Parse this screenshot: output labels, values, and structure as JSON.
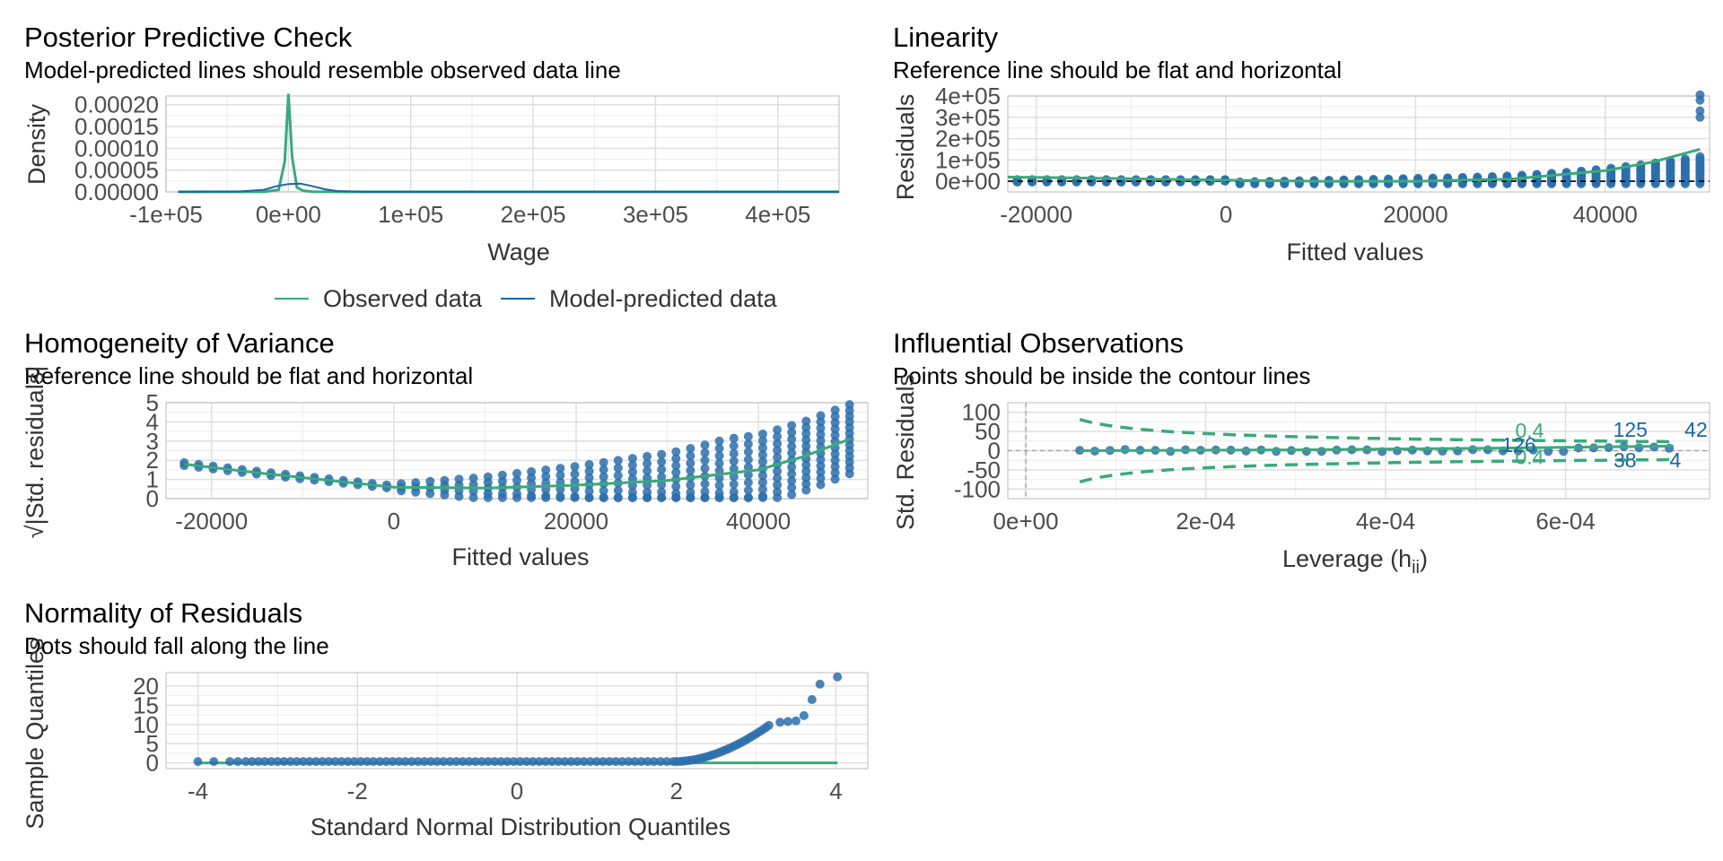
{
  "colors": {
    "observed": "#3aaa7a",
    "predicted": "#1b64a8",
    "points": "#2b6fab",
    "grid": "#dedede",
    "frame": "#bdbdbd",
    "contour": "#3aaa7a",
    "refline": "#000000"
  },
  "chart_data": [
    {
      "type": "line",
      "title": "Posterior Predictive Check",
      "subtitle": "Model-predicted lines should resemble observed data line",
      "xlabel": "Wage",
      "ylabel": "Density",
      "xlim": [
        -100000,
        450000
      ],
      "ylim": [
        0,
        0.00022
      ],
      "xticks": [
        -100000,
        0,
        100000,
        200000,
        300000,
        400000
      ],
      "xtick_labels": [
        "-1e+05",
        "0e+00",
        "1e+05",
        "2e+05",
        "3e+05",
        "4e+05"
      ],
      "yticks": [
        0,
        5e-05,
        0.0001,
        0.00015,
        0.0002
      ],
      "ytick_labels": [
        "0.00000",
        "0.00005",
        "0.00010",
        "0.00015",
        "0.00020"
      ],
      "legend": {
        "position": "bottom",
        "entries": [
          "Observed data",
          "Model-predicted data"
        ]
      },
      "series": [
        {
          "name": "Observed data",
          "x": [
            -90000,
            -20000,
            -8000,
            -3000,
            0,
            3000,
            7000,
            12000,
            20000,
            40000,
            450000
          ],
          "values": [
            2e-07,
            2e-07,
            5e-06,
            7e-05,
            0.000225,
            8e-05,
            1e-05,
            3e-06,
            5e-07,
            2e-07,
            2e-07
          ]
        },
        {
          "name": "Model-predicted data",
          "x": [
            -90000,
            -40000,
            -20000,
            -10000,
            0,
            10000,
            20000,
            30000,
            40000,
            60000,
            450000
          ],
          "values": [
            2e-07,
            1e-06,
            5e-06,
            1.3e-05,
            1.8e-05,
            1.9e-05,
            1.3e-05,
            6e-06,
            2e-06,
            3e-07,
            2e-07
          ]
        }
      ]
    },
    {
      "type": "scatter",
      "title": "Linearity",
      "subtitle": "Reference line should be flat and horizontal",
      "xlabel": "Fitted values",
      "ylabel": "Residuals",
      "xlim": [
        -23000,
        51000
      ],
      "ylim": [
        -50000,
        400000
      ],
      "xticks": [
        -20000,
        0,
        20000,
        40000
      ],
      "xtick_labels": [
        "-20000",
        "0",
        "20000",
        "40000"
      ],
      "yticks": [
        0,
        100000,
        200000,
        300000,
        400000
      ],
      "ytick_labels": [
        "0e+00",
        "1e+05",
        "2e+05",
        "3e+05",
        "4e+05"
      ],
      "reference_line": 0,
      "smooth": {
        "x": [
          -23000,
          -10000,
          0,
          10000,
          20000,
          30000,
          40000,
          45000,
          50000
        ],
        "values": [
          20000,
          12000,
          5000,
          0,
          0,
          10000,
          50000,
          90000,
          150000
        ]
      }
    },
    {
      "type": "scatter",
      "title": "Homogeneity of Variance",
      "subtitle": "Reference line should be flat and horizontal",
      "xlabel": "Fitted values",
      "ylabel": "√|Std. residuals|",
      "xlim": [
        -25000,
        52000
      ],
      "ylim": [
        0,
        5
      ],
      "xticks": [
        -20000,
        0,
        20000,
        40000
      ],
      "xtick_labels": [
        "-20000",
        "0",
        "20000",
        "40000"
      ],
      "yticks": [
        0,
        1,
        2,
        3,
        4,
        5
      ],
      "ytick_labels": [
        "0",
        "1",
        "2",
        "3",
        "4",
        "5"
      ],
      "smooth": {
        "x": [
          -23000,
          -15000,
          -10000,
          0,
          10000,
          20000,
          30000,
          40000,
          45000,
          50000
        ],
        "values": [
          1.8,
          1.35,
          1.1,
          0.6,
          0.55,
          0.7,
          0.95,
          1.5,
          2.2,
          3.1
        ]
      }
    },
    {
      "type": "scatter",
      "title": "Influential Observations",
      "subtitle": "Points should be inside the contour lines",
      "xlabel": "Leverage (h",
      "xlabel_sub": "ii",
      "xlabel_end": ")",
      "ylabel": "Std. Residuals",
      "xlim": [
        -2e-05,
        0.00076
      ],
      "ylim": [
        -125,
        125
      ],
      "xticks": [
        0,
        0.0002,
        0.0004,
        0.0006
      ],
      "xtick_labels": [
        "0e+00",
        "2e-04",
        "4e-04",
        "6e-04"
      ],
      "yticks": [
        -100,
        -50,
        0,
        50,
        100
      ],
      "ytick_labels": [
        "-100",
        "-50",
        "0",
        "50",
        "100"
      ],
      "contour_label": "0.4",
      "point_labels": [
        {
          "text": "125",
          "x": 0.000672,
          "y": 55
        },
        {
          "text": "42",
          "x": 0.000745,
          "y": 55
        },
        {
          "text": "126",
          "x": 0.000548,
          "y": 15
        },
        {
          "text": "38",
          "x": 0.000666,
          "y": -24
        },
        {
          "text": "4",
          "x": 0.000722,
          "y": -24
        }
      ]
    },
    {
      "type": "scatter",
      "title": "Normality of Residuals",
      "subtitle": "Dots should fall along the line",
      "xlabel": "Standard Normal Distribution Quantiles",
      "ylabel": "Sample Quantiles",
      "xlim": [
        -4.4,
        4.4
      ],
      "ylim": [
        -1.5,
        23.5
      ],
      "xticks": [
        -4,
        -2,
        0,
        2,
        4
      ],
      "xtick_labels": [
        "-4",
        "-2",
        "0",
        "2",
        "4"
      ],
      "yticks": [
        0,
        5,
        10,
        15,
        20
      ],
      "ytick_labels": [
        "0",
        "5",
        "10",
        "15",
        "20"
      ],
      "reference_line": 0
    }
  ]
}
